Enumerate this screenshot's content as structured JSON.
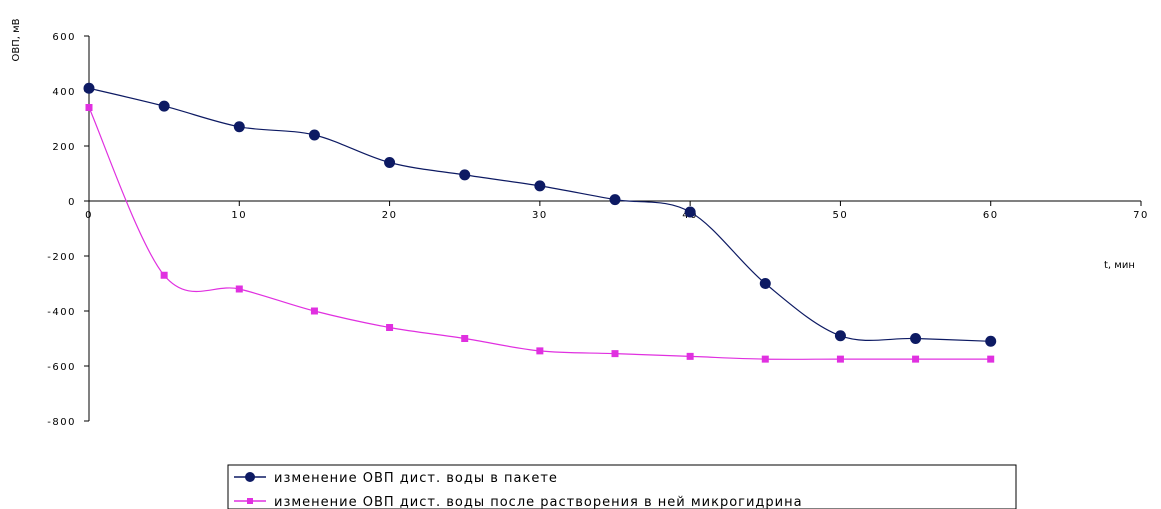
{
  "chart_data": {
    "type": "line",
    "ylabel": "ОВП, мВ",
    "xlabel": "t, мин",
    "xlim": [
      0,
      70
    ],
    "ylim": [
      -800,
      600
    ],
    "x_ticks": [
      0,
      10,
      20,
      30,
      40,
      50,
      60,
      70
    ],
    "y_ticks": [
      600,
      400,
      200,
      0,
      -200,
      -400,
      -600,
      -800
    ],
    "grid": false,
    "legend_position": "bottom",
    "series": [
      {
        "name": "изменение ОВП дист. воды в пакете",
        "color": "#0d1a63",
        "marker": "circle",
        "x": [
          0,
          5,
          10,
          15,
          20,
          25,
          30,
          35,
          40,
          45,
          50,
          55,
          60
        ],
        "y": [
          410,
          345,
          270,
          240,
          140,
          95,
          55,
          5,
          -40,
          -300,
          -490,
          -500,
          -510
        ]
      },
      {
        "name": "изменение ОВП дист. воды после растворения в ней микрогидрина",
        "color": "#e030e0",
        "marker": "square",
        "x": [
          0,
          5,
          10,
          15,
          20,
          25,
          30,
          35,
          40,
          45,
          50,
          55,
          60
        ],
        "y": [
          340,
          -270,
          -320,
          -400,
          -460,
          -500,
          -545,
          -555,
          -565,
          -575,
          -575,
          -575,
          -575
        ]
      }
    ]
  }
}
